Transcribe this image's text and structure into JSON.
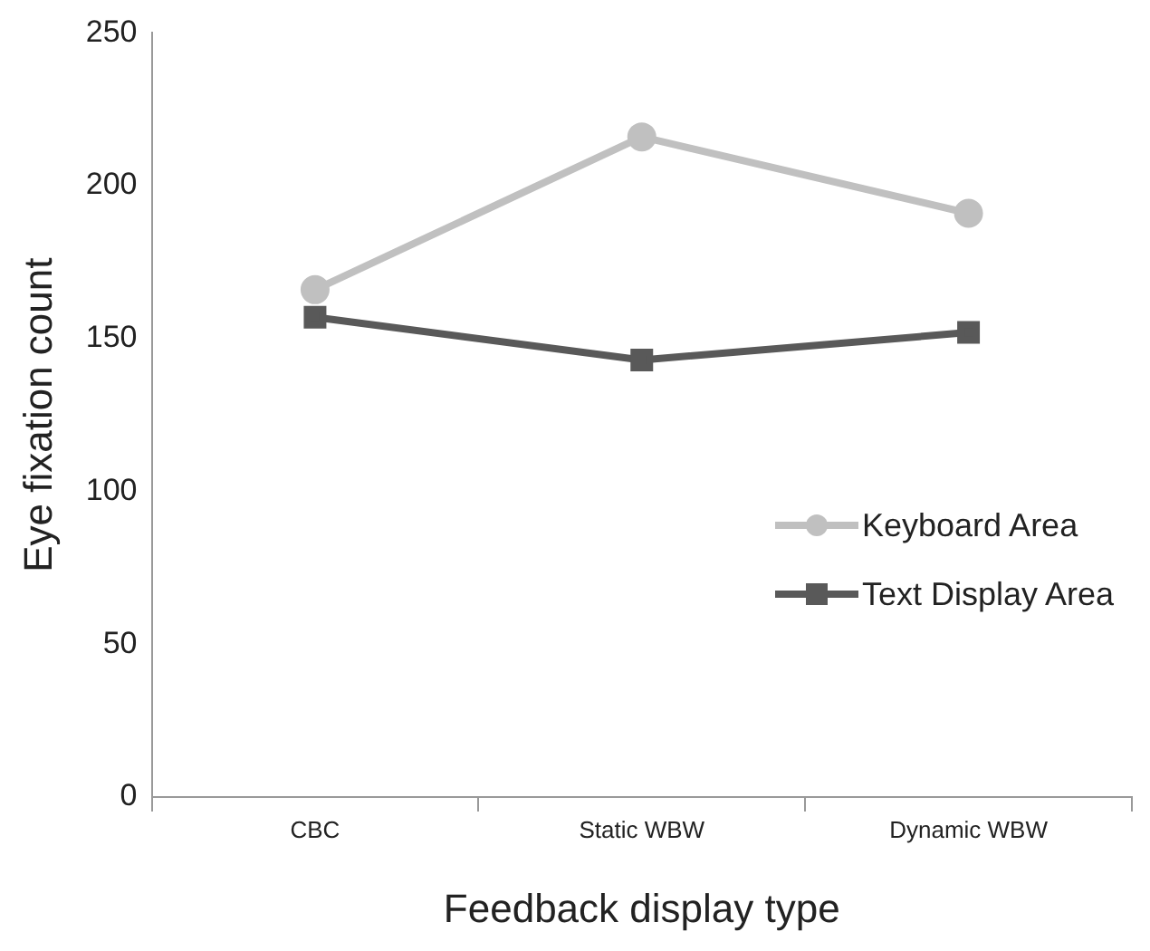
{
  "chart_data": {
    "type": "line",
    "xlabel": "Feedback display type",
    "ylabel": "Eye fixation count",
    "categories": [
      "CBC",
      "Static WBW",
      "Dynamic WBW"
    ],
    "series": [
      {
        "name": "Keyboard Area",
        "color": "#c0c0c0",
        "values": [
          166,
          216,
          191
        ],
        "marker": "circle"
      },
      {
        "name": "Text Display Area",
        "color": "#595959",
        "values": [
          157,
          143,
          152
        ],
        "marker": "square"
      }
    ],
    "ylim": [
      0,
      250
    ],
    "yticks": [
      0,
      50,
      100,
      150,
      200,
      250
    ],
    "grid": false,
    "legend": "right",
    "line_style": "solid"
  }
}
